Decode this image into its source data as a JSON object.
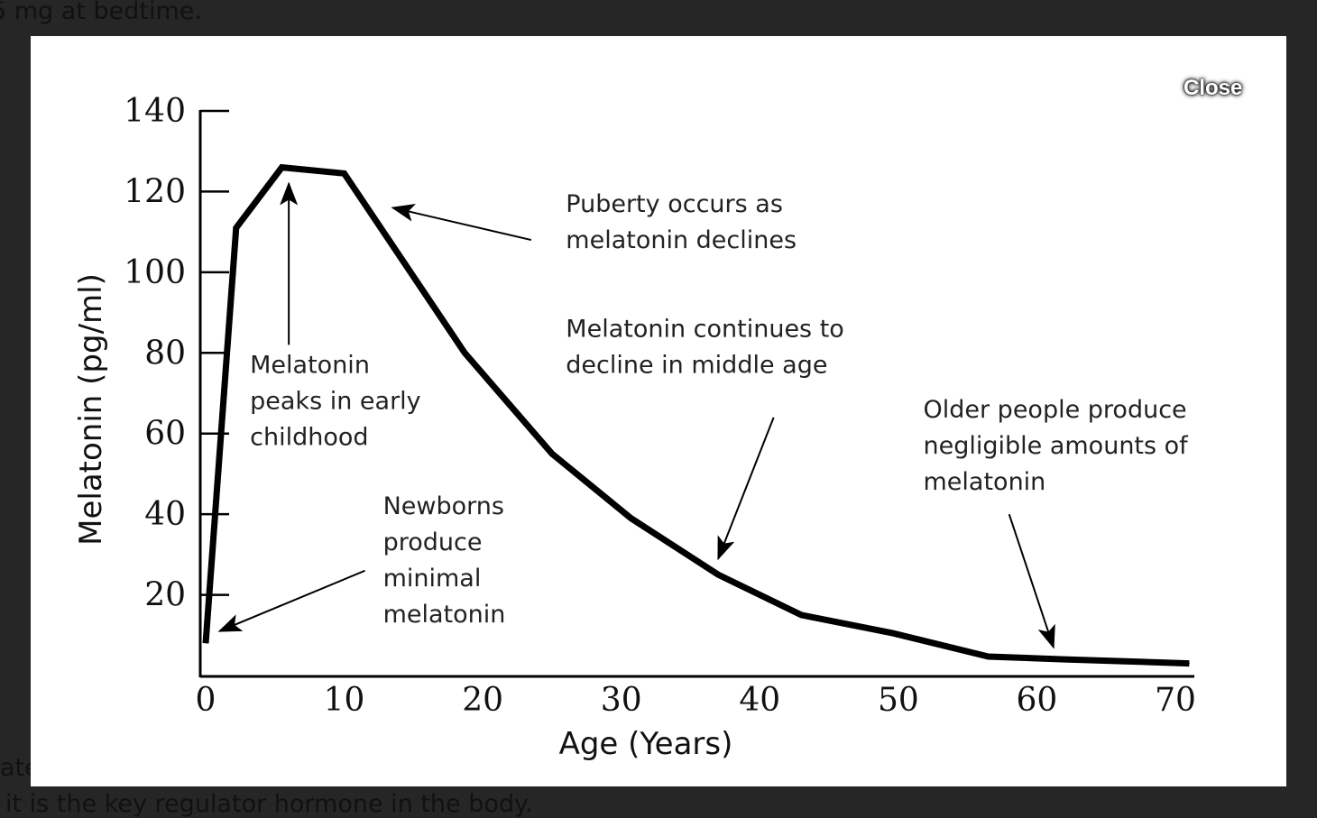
{
  "background_text": {
    "top": "5 mg at bedtime.",
    "middle": "ate",
    "bottom": "it is the key regulator hormone in the body."
  },
  "modal": {
    "close_label": "Close"
  },
  "colors": {
    "page_background": "#262626",
    "modal_background": "#ffffff",
    "line": "#000000"
  },
  "chart_data": {
    "type": "line",
    "title": "",
    "xlabel": "Age (Years)",
    "ylabel": "Melatonin (pg/ml)",
    "xlim": [
      0,
      70
    ],
    "ylim": [
      0,
      140
    ],
    "x_ticks": [
      "0",
      "10",
      "20",
      "30",
      "40",
      "50",
      "60",
      "70"
    ],
    "x_tick_values": [
      0,
      10,
      20,
      30,
      40,
      50,
      60,
      70
    ],
    "y_ticks": [
      "20",
      "40",
      "60",
      "80",
      "100",
      "120",
      "140"
    ],
    "y_tick_values": [
      20,
      40,
      60,
      80,
      100,
      120,
      140
    ],
    "grid": false,
    "series": [
      {
        "name": "Melatonin",
        "x": [
          0,
          2.2,
          5.5,
          10,
          18.7,
          25,
          30.7,
          37,
          43,
          49.6,
          56.5,
          62,
          71
        ],
        "y": [
          8,
          111,
          126,
          124.5,
          80,
          55,
          39,
          25,
          15,
          10.5,
          4.7,
          4,
          3
        ]
      }
    ],
    "annotations": [
      {
        "lines": [
          "Melatonin",
          "peaks in early",
          "childhood"
        ],
        "text_at": [
          3.2,
          75
        ],
        "arrow_to": [
          6,
          122
        ],
        "arrow_from": [
          6,
          82
        ]
      },
      {
        "lines": [
          "Puberty occurs as",
          "melatonin declines"
        ],
        "text_at": [
          26,
          115
        ],
        "arrow_to": [
          13.5,
          116
        ],
        "arrow_from": [
          23.5,
          108
        ]
      },
      {
        "lines": [
          "Newborns",
          "produce",
          "minimal",
          "melatonin"
        ],
        "text_at": [
          12.8,
          40
        ],
        "arrow_to": [
          1,
          11
        ],
        "arrow_from": [
          11.5,
          26
        ]
      },
      {
        "lines": [
          "Melatonin continues to",
          "decline in middle age"
        ],
        "text_at": [
          26,
          84
        ],
        "arrow_to": [
          37,
          29
        ],
        "arrow_from": [
          41,
          64
        ]
      },
      {
        "lines": [
          "Older people produce",
          "negligible amounts of",
          "melatonin"
        ],
        "text_at": [
          51.8,
          64
        ],
        "arrow_to": [
          61.2,
          7
        ],
        "arrow_from": [
          58,
          40
        ]
      }
    ]
  }
}
